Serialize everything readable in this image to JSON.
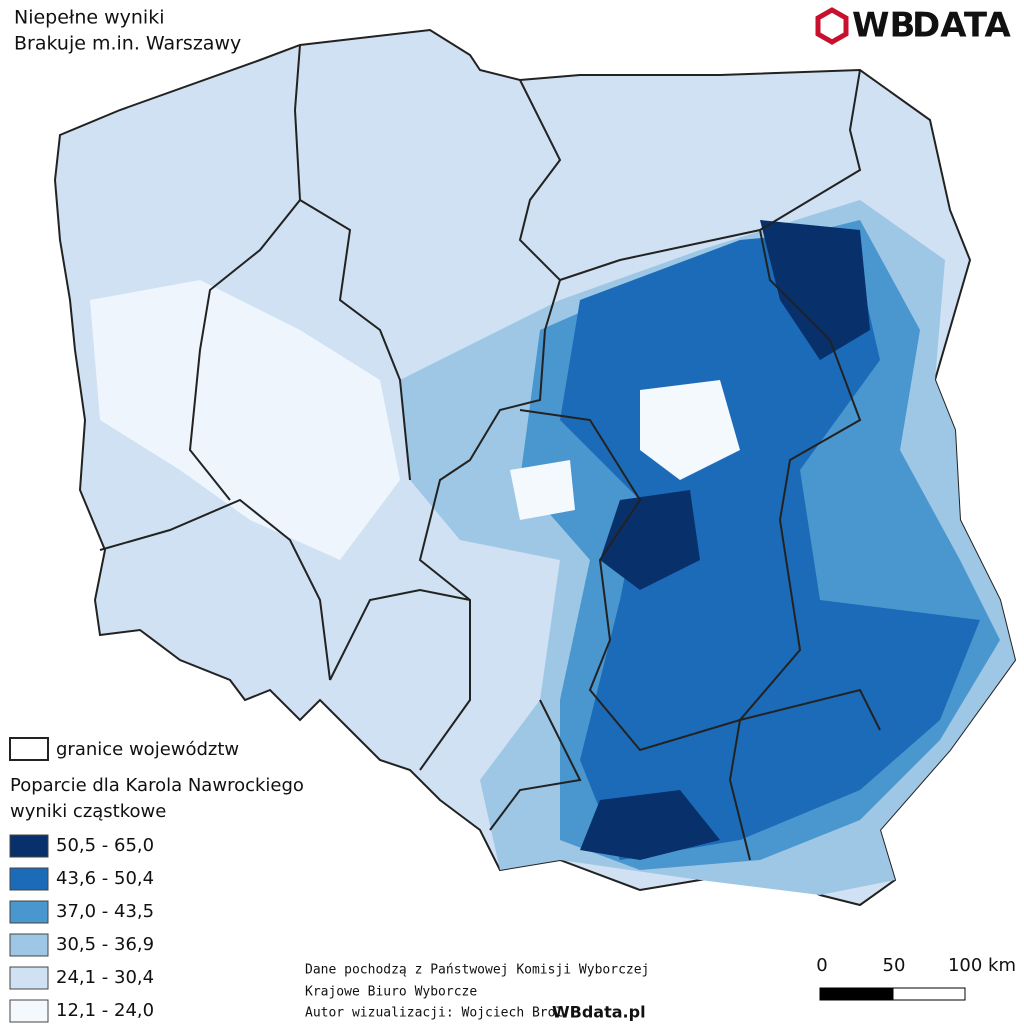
{
  "header": {
    "title_lines": [
      "Niepełne wyniki",
      "Brakuje m.in. Warszawy"
    ],
    "logo": {
      "prefix": "WB",
      "suffix": "DATA"
    }
  },
  "legend": {
    "boundary_label": "granice województw",
    "title_lines": [
      "Poparcie dla Karola Nawrockiego",
      "wyniki cząstkowe"
    ],
    "classes": [
      {
        "label": "50,5 - 65,0",
        "color": "#08306b"
      },
      {
        "label": "43,6 - 50,4",
        "color": "#1c6bb8"
      },
      {
        "label": "37,0 - 43,5",
        "color": "#4a96cf"
      },
      {
        "label": "30,5 - 36,9",
        "color": "#9dc7e4"
      },
      {
        "label": "24,1 - 30,4",
        "color": "#cfe1f2"
      },
      {
        "label": "12,1 - 24,0",
        "color": "#f4f9fe"
      }
    ]
  },
  "scale_bar": {
    "ticks": [
      "0",
      "50",
      "100 km"
    ]
  },
  "credits": {
    "lines": [
      "Dane pochodzą z Państwowej Komisji Wyborczej",
      "Krajowe Biuro Wyborcze"
    ],
    "author": "Autor wizualizacji: Wojciech Brol",
    "site": "WBdata.pl"
  }
}
